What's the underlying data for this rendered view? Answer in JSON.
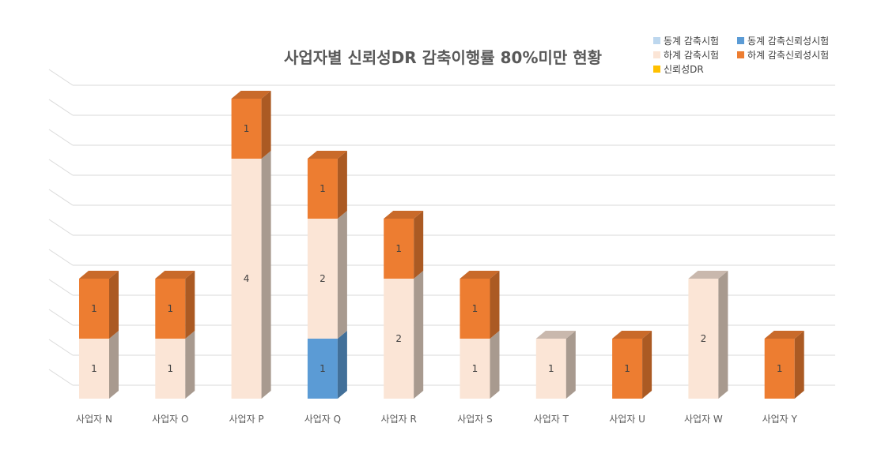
{
  "chart_data": {
    "type": "bar",
    "stacked": true,
    "three_d": true,
    "title": "사업자별 신뢰성DR 감축이행률 80%미만 현황",
    "xlabel": "",
    "ylabel": "",
    "ylim": [
      0,
      10
    ],
    "grid": true,
    "legend_position": "top-right",
    "categories": [
      "사업자 N",
      "사업자 O",
      "사업자 P",
      "사업자 Q",
      "사업자 R",
      "사업자 S",
      "사업자 T",
      "사업자 U",
      "사업자 W",
      "사업자 Y"
    ],
    "series": [
      {
        "name": "동계 감축시험",
        "color": "#bdd7ee",
        "values": [
          0,
          0,
          0,
          0,
          0,
          0,
          0,
          0,
          0,
          0
        ]
      },
      {
        "name": "동계 감축신뢰성시험",
        "color": "#5b9bd5",
        "values": [
          0,
          0,
          0,
          1,
          0,
          0,
          0,
          0,
          0,
          0
        ]
      },
      {
        "name": "하계 감축시험",
        "color": "#fbe5d6",
        "values": [
          1,
          1,
          4,
          2,
          2,
          1,
          1,
          0,
          2,
          0
        ]
      },
      {
        "name": "하계 감축신뢰성시험",
        "color": "#ed7d31",
        "values": [
          1,
          1,
          1,
          1,
          1,
          1,
          0,
          1,
          0,
          1
        ]
      },
      {
        "name": "신뢰성DR",
        "color": "#ffc000",
        "values": [
          0,
          0,
          0,
          0,
          0,
          0,
          0,
          0,
          0,
          0
        ]
      }
    ]
  }
}
